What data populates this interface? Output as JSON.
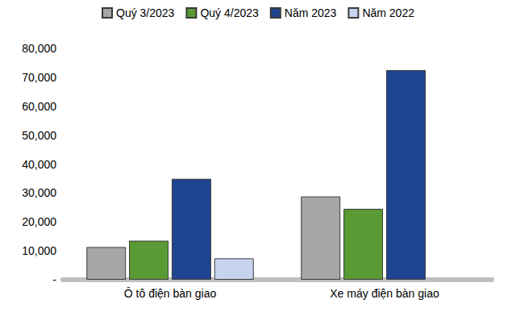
{
  "chart_data": {
    "type": "bar",
    "categories": [
      "Ô tô điện bàn giao",
      "Xe máy điện bàn giao"
    ],
    "series": [
      {
        "name": "Quý 3/2023",
        "color": "#a6a6a6",
        "values": [
          11300,
          28800
        ]
      },
      {
        "name": "Quý 4/2023",
        "color": "#5a9a34",
        "values": [
          13500,
          24500
        ]
      },
      {
        "name": "Năm 2023",
        "color": "#1f4591",
        "values": [
          34900,
          72500
        ]
      },
      {
        "name": "Năm 2022",
        "color": "#c7d4ef",
        "values": [
          7400,
          null
        ]
      }
    ],
    "ylim": [
      0,
      80000
    ],
    "yticks": [
      {
        "value": 0,
        "label": "-"
      },
      {
        "value": 10000,
        "label": "10,000"
      },
      {
        "value": 20000,
        "label": "20,000"
      },
      {
        "value": 30000,
        "label": "30,000"
      },
      {
        "value": 40000,
        "label": "40,000"
      },
      {
        "value": 50000,
        "label": "50,000"
      },
      {
        "value": 60000,
        "label": "60,000"
      },
      {
        "value": 70000,
        "label": "70,000"
      },
      {
        "value": 80000,
        "label": "80,000"
      }
    ],
    "grid": false,
    "legend": "top"
  }
}
